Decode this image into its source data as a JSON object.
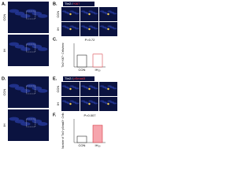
{
  "panels": {
    "a": {
      "label": "A.",
      "rows": [
        "CON",
        "IH"
      ]
    },
    "b": {
      "label": "B.",
      "title_parts": [
        {
          "text": "Tbr2",
          "color": "#ffffff"
        },
        {
          "text": "/",
          "color": "#ffffff"
        },
        {
          "text": "Ki67",
          "color": "#ff3b3b"
        }
      ],
      "rows": [
        "CON",
        "IH"
      ]
    },
    "c": {
      "label": "C.",
      "p_value": "P=0.72",
      "y_label": "Tbr2⁺Ki67⁺ Cells/mm²",
      "categories": [
        "CON",
        "IH₁₀"
      ],
      "values": [
        5,
        5.4
      ],
      "colors": [
        "#ffffff",
        "#ffffff"
      ],
      "ylim": [
        0,
        10
      ]
    },
    "d": {
      "label": "D.",
      "rows": [
        "CON",
        "IH"
      ]
    },
    "e": {
      "label": "E.",
      "title_parts": [
        {
          "text": "Tbr2",
          "color": "#ffffff"
        },
        {
          "text": "/",
          "color": "#ffffff"
        },
        {
          "text": "pSmad3",
          "color": "#ff3b3b"
        }
      ],
      "rows": [
        "CON",
        "IH"
      ]
    },
    "f": {
      "label": "F.",
      "p_value": "P=0.007",
      "y_label": "Number of Tbr2⁺pSmad3⁺ Cells",
      "categories": [
        "CON",
        "IH₁₀"
      ],
      "values": [
        4,
        11
      ],
      "colors": [
        "#ffffff",
        "#f6a5ad"
      ],
      "ylim": [
        0,
        15
      ]
    }
  }
}
